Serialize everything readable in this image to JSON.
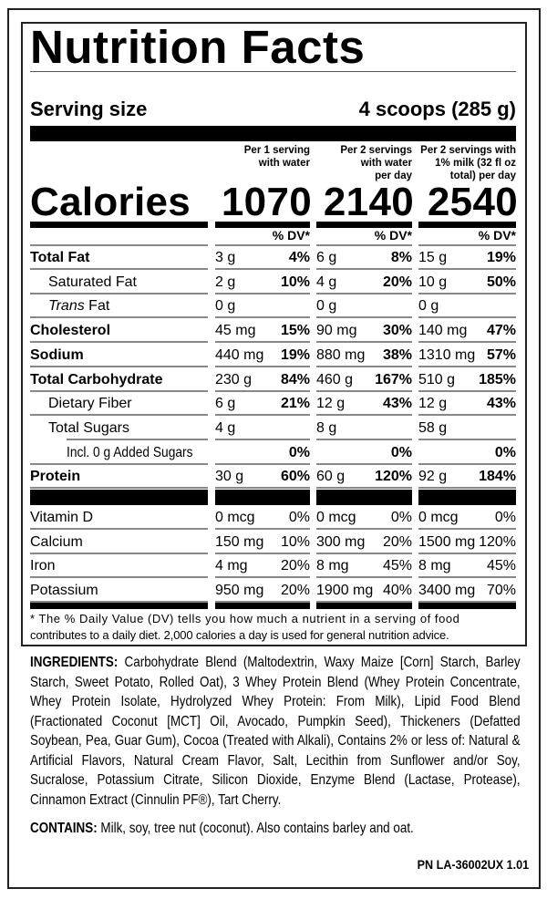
{
  "title": "Nutrition Facts",
  "serving": {
    "label": "Serving size",
    "value": "4 scoops (285 g)"
  },
  "columns": [
    {
      "header": [
        "Per 1 serving",
        "with water"
      ],
      "calories": "1070",
      "dv_label": "% DV*"
    },
    {
      "header": [
        "Per 2 servings",
        "with water",
        "per day"
      ],
      "calories": "2140",
      "dv_label": "% DV*"
    },
    {
      "header": [
        "Per 2 servings with",
        "1% milk (32 fl oz",
        "total) per day"
      ],
      "calories": "2540",
      "dv_label": "% DV*"
    }
  ],
  "calories_label": "Calories",
  "nutrients": [
    {
      "label": "Total Fat",
      "style": "bold",
      "values": [
        [
          "3 g",
          "4%"
        ],
        [
          "6 g",
          "8%"
        ],
        [
          "15 g",
          "19%"
        ]
      ]
    },
    {
      "label": "Saturated Fat",
      "style": "indent",
      "values": [
        [
          "2 g",
          "10%"
        ],
        [
          "4 g",
          "20%"
        ],
        [
          "10 g",
          "50%"
        ]
      ]
    },
    {
      "label_italic": "Trans",
      "label": " Fat",
      "style": "indent",
      "values": [
        [
          "0 g",
          ""
        ],
        [
          "0 g",
          ""
        ],
        [
          "0 g",
          ""
        ]
      ]
    },
    {
      "label": "Cholesterol",
      "style": "bold",
      "values": [
        [
          "45 mg",
          "15%"
        ],
        [
          "90 mg",
          "30%"
        ],
        [
          "140 mg",
          "47%"
        ]
      ]
    },
    {
      "label": "Sodium",
      "style": "bold",
      "values": [
        [
          "440 mg",
          "19%"
        ],
        [
          "880 mg",
          "38%"
        ],
        [
          "1310 mg",
          "57%"
        ]
      ]
    },
    {
      "label": "Total Carbohydrate",
      "style": "bold",
      "values": [
        [
          "230 g",
          "84%"
        ],
        [
          "460 g",
          "167%"
        ],
        [
          "510 g",
          "185%"
        ]
      ]
    },
    {
      "label": "Dietary Fiber",
      "style": "indent",
      "values": [
        [
          "6 g",
          "21%"
        ],
        [
          "12 g",
          "43%"
        ],
        [
          "12 g",
          "43%"
        ]
      ]
    },
    {
      "label": "Total Sugars",
      "style": "indent",
      "values": [
        [
          "4 g",
          ""
        ],
        [
          "8 g",
          ""
        ],
        [
          "58 g",
          ""
        ]
      ]
    },
    {
      "label": "Incl. 0 g Added Sugars",
      "style": "indent2",
      "values": [
        [
          "",
          "0%"
        ],
        [
          "",
          "0%"
        ],
        [
          "",
          "0%"
        ]
      ]
    },
    {
      "label": "Protein",
      "style": "bold",
      "values": [
        [
          "30 g",
          "60%"
        ],
        [
          "60 g",
          "120%"
        ],
        [
          "92 g",
          "184%"
        ]
      ]
    }
  ],
  "vitamins": [
    {
      "label": "Vitamin D",
      "values": [
        [
          "0 mcg",
          "0%"
        ],
        [
          "0 mcg",
          "0%"
        ],
        [
          "0 mcg",
          "0%"
        ]
      ]
    },
    {
      "label": "Calcium",
      "values": [
        [
          "150 mg",
          "10%"
        ],
        [
          "300 mg",
          "20%"
        ],
        [
          "1500 mg",
          "120%"
        ]
      ]
    },
    {
      "label": "Iron",
      "values": [
        [
          "4 mg",
          "20%"
        ],
        [
          "8 mg",
          "45%"
        ],
        [
          "8 mg",
          "45%"
        ]
      ]
    },
    {
      "label": "Potassium",
      "values": [
        [
          "950 mg",
          "20%"
        ],
        [
          "1900 mg",
          "40%"
        ],
        [
          "3400 mg",
          "70%"
        ]
      ]
    }
  ],
  "footnote": [
    "* The % Daily Value (DV) tells you how much a nutrient in a serving of food",
    "contributes to a daily diet. 2,000 calories a day is used for general nutrition advice."
  ],
  "ingredients": {
    "label": "INGREDIENTS:",
    "text": " Carbohydrate Blend (Maltodextrin, Waxy Maize [Corn] Starch, Barley Starch, Sweet Potato, Rolled Oat), 3 Whey Protein Blend (Whey Protein Concentrate, Whey Protein Isolate, Hydrolyzed Whey Protein: From Milk), Lipid Food Blend (Fractionated Coconut [MCT] Oil, Avocado, Pumpkin Seed), Thickeners (Defatted Soybean, Pea, Guar Gum), Cocoa (Treated with Alkali), Contains 2% or less of: Natural & Artificial Flavors, Natural Cream Flavor, Salt, Lecithin from Sunflower and/or Soy, Sucralose, Potassium Citrate, Silicon Dioxide, Enzyme Blend (Lactase, Protease), Cinnamon Extract (Cinnulin PF®), Tart Cherry."
  },
  "contains": {
    "label": "CONTAINS:",
    "text": " Milk, soy, tree nut (coconut). Also contains barley and oat."
  },
  "part_number": "PN LA-36002UX 1.01"
}
